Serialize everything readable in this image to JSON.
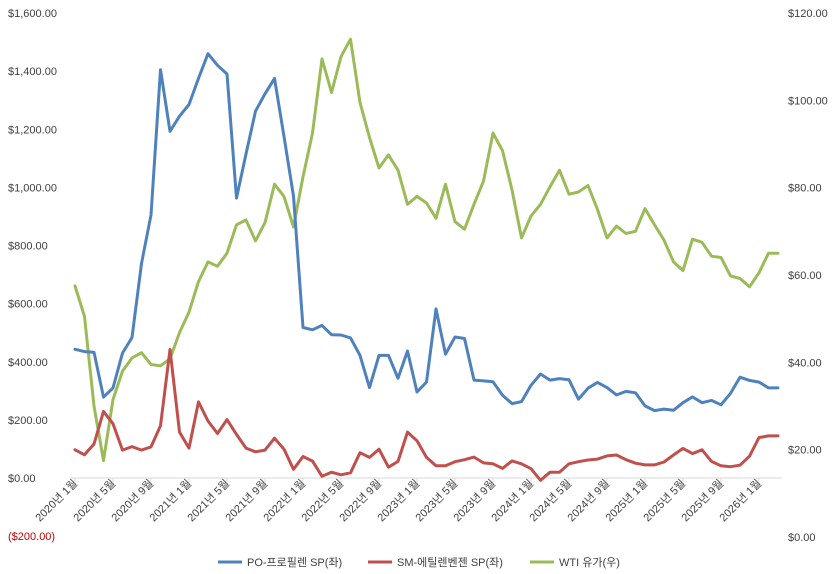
{
  "chart_data": {
    "type": "line",
    "title": "",
    "left_axis": {
      "ylim": [
        -200,
        1600
      ],
      "ticks": [
        -200,
        0,
        200,
        400,
        600,
        800,
        1000,
        1200,
        1400,
        1600
      ],
      "tick_labels": [
        "($200.00)",
        "$0.00",
        "$200.00",
        "$400.00",
        "$600.00",
        "$800.00",
        "$1,000.00",
        "$1,200.00",
        "$1,400.00",
        "$1,600.00"
      ]
    },
    "right_axis": {
      "ylim": [
        0,
        120
      ],
      "ticks": [
        0,
        20,
        40,
        60,
        80,
        100,
        120
      ],
      "tick_labels": [
        "$0.00",
        "$20.00",
        "$40.00",
        "$60.00",
        "$80.00",
        "$100.00",
        "$120.00"
      ]
    },
    "x_tick_labels": [
      "2020년 1월",
      "2020년 5월",
      "2020년 9월",
      "2021년 1월",
      "2021년 5월",
      "2021년 9월",
      "2022년 1월",
      "2022년 5월",
      "2022년 9월",
      "2023년 1월",
      "2023년 5월",
      "2023년 9월",
      "2024년 1월",
      "2024년 5월",
      "2024년 9월",
      "2025년 1월",
      "2025년 5월",
      "2025년 9월",
      "2026년 1월"
    ],
    "x_tick_every": 4,
    "n_points": 75,
    "series": [
      {
        "name": "PO-프로필렌 SP(좌)",
        "axis": "left",
        "color": "#4f81bd",
        "values": [
          443,
          435,
          433,
          278,
          310,
          430,
          483,
          738,
          905,
          1405,
          1193,
          1245,
          1285,
          1375,
          1460,
          1420,
          1390,
          963,
          1115,
          1262,
          1322,
          1375,
          1175,
          970,
          518,
          510,
          525,
          493,
          492,
          482,
          422,
          311,
          422,
          422,
          343,
          437,
          296,
          330,
          582,
          426,
          485,
          480,
          337,
          334,
          331,
          285,
          256,
          263,
          319,
          358,
          337,
          342,
          338,
          271,
          309,
          329,
          311,
          286,
          298,
          293,
          248,
          232,
          237,
          233,
          259,
          279,
          259,
          267,
          252,
          291,
          347,
          336,
          330,
          310,
          310
        ]
      },
      {
        "name": "SM-에틸렌벤젠 SP(좌)",
        "axis": "left",
        "color": "#c0504d",
        "values": [
          97,
          80,
          117,
          229,
          187,
          96,
          108,
          96,
          107,
          180,
          442,
          158,
          103,
          262,
          196,
          153,
          201,
          150,
          103,
          90,
          96,
          137,
          99,
          30,
          74,
          58,
          6,
          20,
          11,
          18,
          87,
          71,
          99,
          37,
          57,
          158,
          128,
          71,
          42,
          42,
          56,
          63,
          72,
          52,
          49,
          33,
          59,
          49,
          32,
          -8,
          20,
          20,
          49,
          56,
          62,
          65,
          76,
          79,
          63,
          51,
          45,
          45,
          55,
          79,
          102,
          84,
          97,
          57,
          42,
          39,
          44,
          75,
          139,
          145,
          145
        ]
      },
      {
        "name": "WTI 유가(우)",
        "axis": "right",
        "color": "#9bbb59",
        "values": [
          57.5,
          50.5,
          30,
          17.5,
          31.5,
          38,
          41,
          42.2,
          39.5,
          39.2,
          40.8,
          46.8,
          51.5,
          58.5,
          63,
          62,
          65,
          71.5,
          72.6,
          67.8,
          72,
          80.8,
          78,
          71,
          82.5,
          92.5,
          109.5,
          101.8,
          110,
          114,
          99.5,
          91.5,
          84.5,
          87.5,
          84,
          76.2,
          78,
          76.5,
          73,
          80.8,
          72.2,
          70.5,
          76.2,
          81.5,
          92.5,
          88.5,
          79.5,
          68.5,
          73.5,
          76.2,
          80.2,
          84,
          78.5,
          79,
          80.5,
          75,
          68.5,
          71.2,
          69.5,
          70,
          75.2,
          71.5,
          68,
          63,
          61,
          68.2,
          67.5,
          64.3,
          64,
          59.8,
          59.2,
          57.3,
          60.5,
          65,
          65
        ]
      }
    ],
    "legend": {
      "position": "bottom",
      "entries": [
        "PO-프로필렌 SP(좌)",
        "SM-에틸렌벤젠 SP(좌)",
        "WTI 유가(우)"
      ]
    },
    "negative_tick_color": "#c00000"
  }
}
